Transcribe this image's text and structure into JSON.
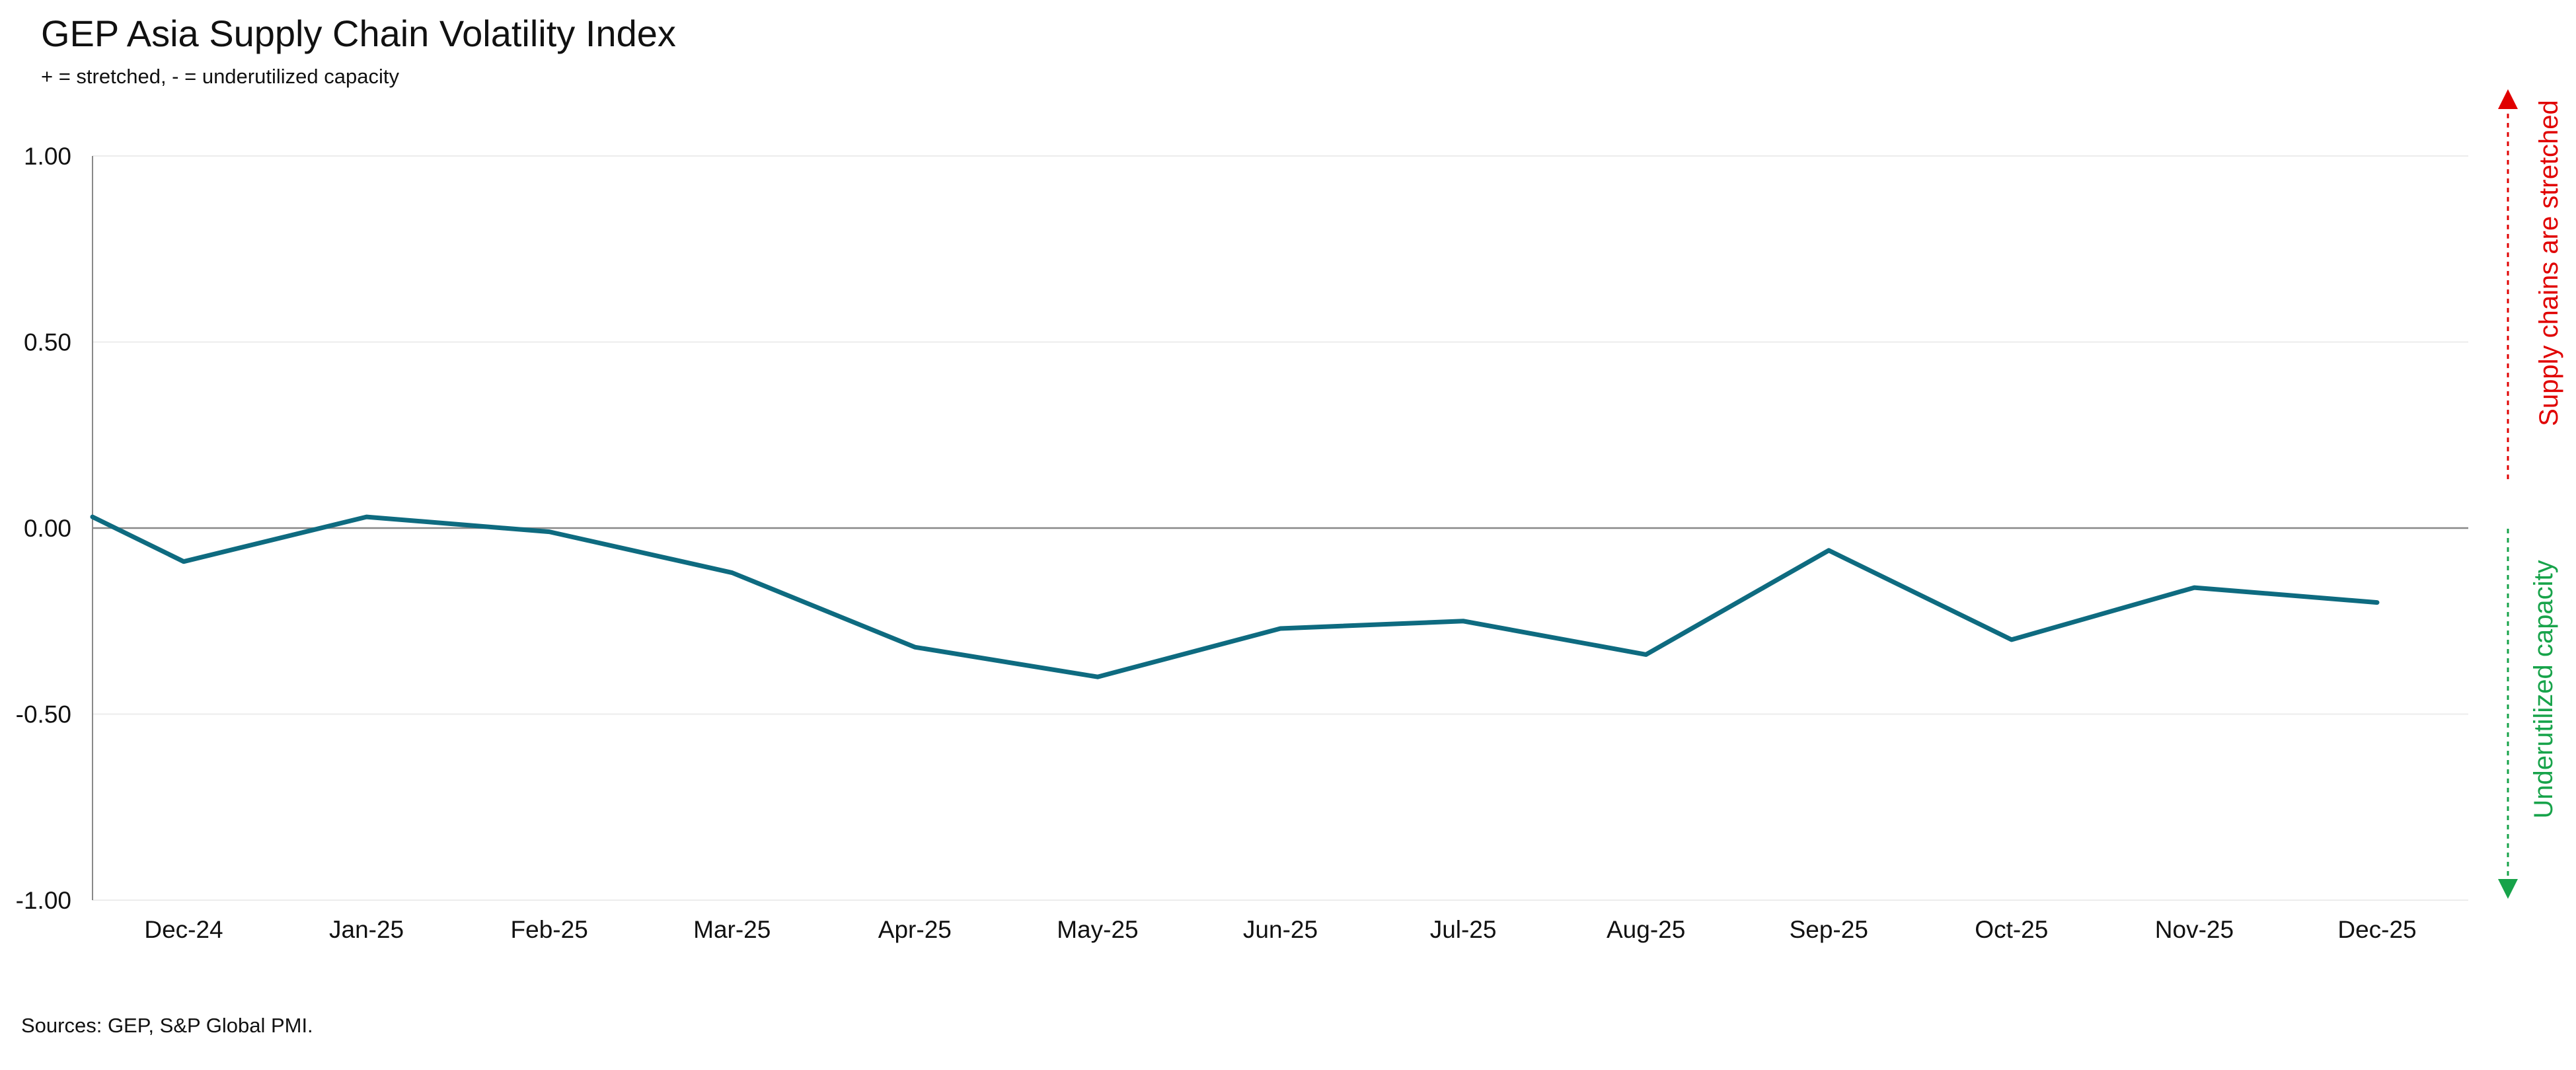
{
  "title": "GEP Asia Supply Chain Volatility Index",
  "subtitle": "+ = stretched, - = underutilized capacity",
  "source": "Sources: GEP, S&P Global PMI.",
  "colors": {
    "line": "#0e6b80",
    "axis": "#888888",
    "grid": "#ececec",
    "stretched": "#e00000",
    "underutilized": "#17a34a"
  },
  "side_labels": {
    "stretched": "Supply chains are stretched",
    "underutilized": "Underutilized capacity"
  },
  "chart_data": {
    "type": "line",
    "title": "GEP Asia Supply Chain Volatility Index",
    "subtitle": "+ = stretched, - = underutilized capacity",
    "categories": [
      "Dec-24",
      "Jan-25",
      "Feb-25",
      "Mar-25",
      "Apr-25",
      "May-25",
      "Jun-25",
      "Jul-25",
      "Aug-25",
      "Sep-25",
      "Oct-25",
      "Nov-25",
      "Dec-25"
    ],
    "ylim": [
      -1.0,
      1.0
    ],
    "yticks": [
      "1.00",
      "0.50",
      "0.00",
      "-0.50",
      "-1.00"
    ],
    "ytick_values": [
      1.0,
      0.5,
      0.0,
      -0.5,
      -1.0
    ],
    "series": [
      {
        "values": [
          -0.09,
          0.03,
          -0.01,
          -0.12,
          -0.32,
          -0.4,
          -0.27,
          -0.25,
          -0.34,
          -0.06,
          -0.3,
          -0.16,
          -0.2
        ],
        "start_value": 0.03
      }
    ],
    "grid": true,
    "legend": "none"
  }
}
